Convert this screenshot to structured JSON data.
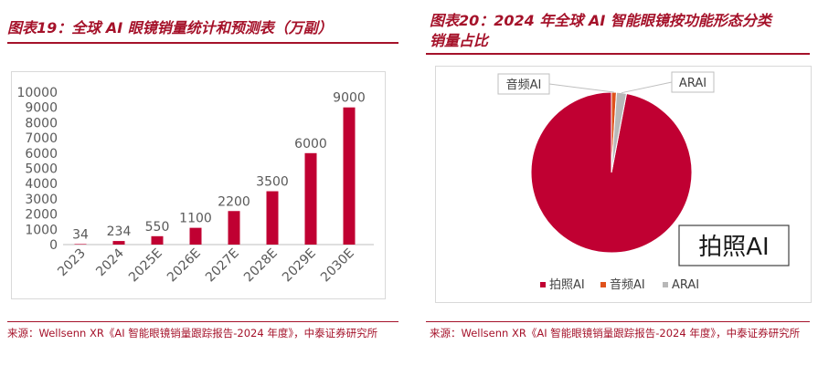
{
  "left": {
    "title": "图表19：全球 AI 眼镜销量统计和预测表（万副）",
    "source": "来源：Wellsenn XR《AI 智能眼镜销量跟踪报告-2024 年度》，中泰证券研究所"
  },
  "right": {
    "title_line1": "图表20：2024 年全球 AI 智能眼镜按功能形态分类",
    "title_line2": "销量占比",
    "source": "来源：Wellsenn XR《AI 智能眼镜销量跟踪报告-2024 年度》，中泰证券研究所"
  },
  "chart_data": [
    {
      "type": "bar",
      "title": "",
      "categories": [
        "2023",
        "2024",
        "2025E",
        "2026E",
        "2027E",
        "2028E",
        "2029E",
        "2030E"
      ],
      "values": [
        34,
        234,
        550,
        1100,
        2200,
        3500,
        6000,
        9000
      ],
      "data_labels": [
        "34",
        "234",
        "550",
        "1100",
        "2200",
        "3500",
        "6000",
        "9000"
      ],
      "ylim": [
        0,
        10000
      ],
      "yticks": [
        "0",
        "1000",
        "2000",
        "3000",
        "4000",
        "5000",
        "6000",
        "7000",
        "8000",
        "9000",
        "10000"
      ],
      "grid": false,
      "color": "#c00032"
    },
    {
      "type": "pie",
      "title": "",
      "labels": [
        "拍照AI",
        "音频AI",
        "ARAI"
      ],
      "values": [
        97,
        1,
        2
      ],
      "colors": [
        "#c00032",
        "#e0521b",
        "#b8b8b8"
      ],
      "callouts": [
        "拍照AI",
        "音频AI",
        "ARAI"
      ],
      "legend": "bottom"
    }
  ]
}
